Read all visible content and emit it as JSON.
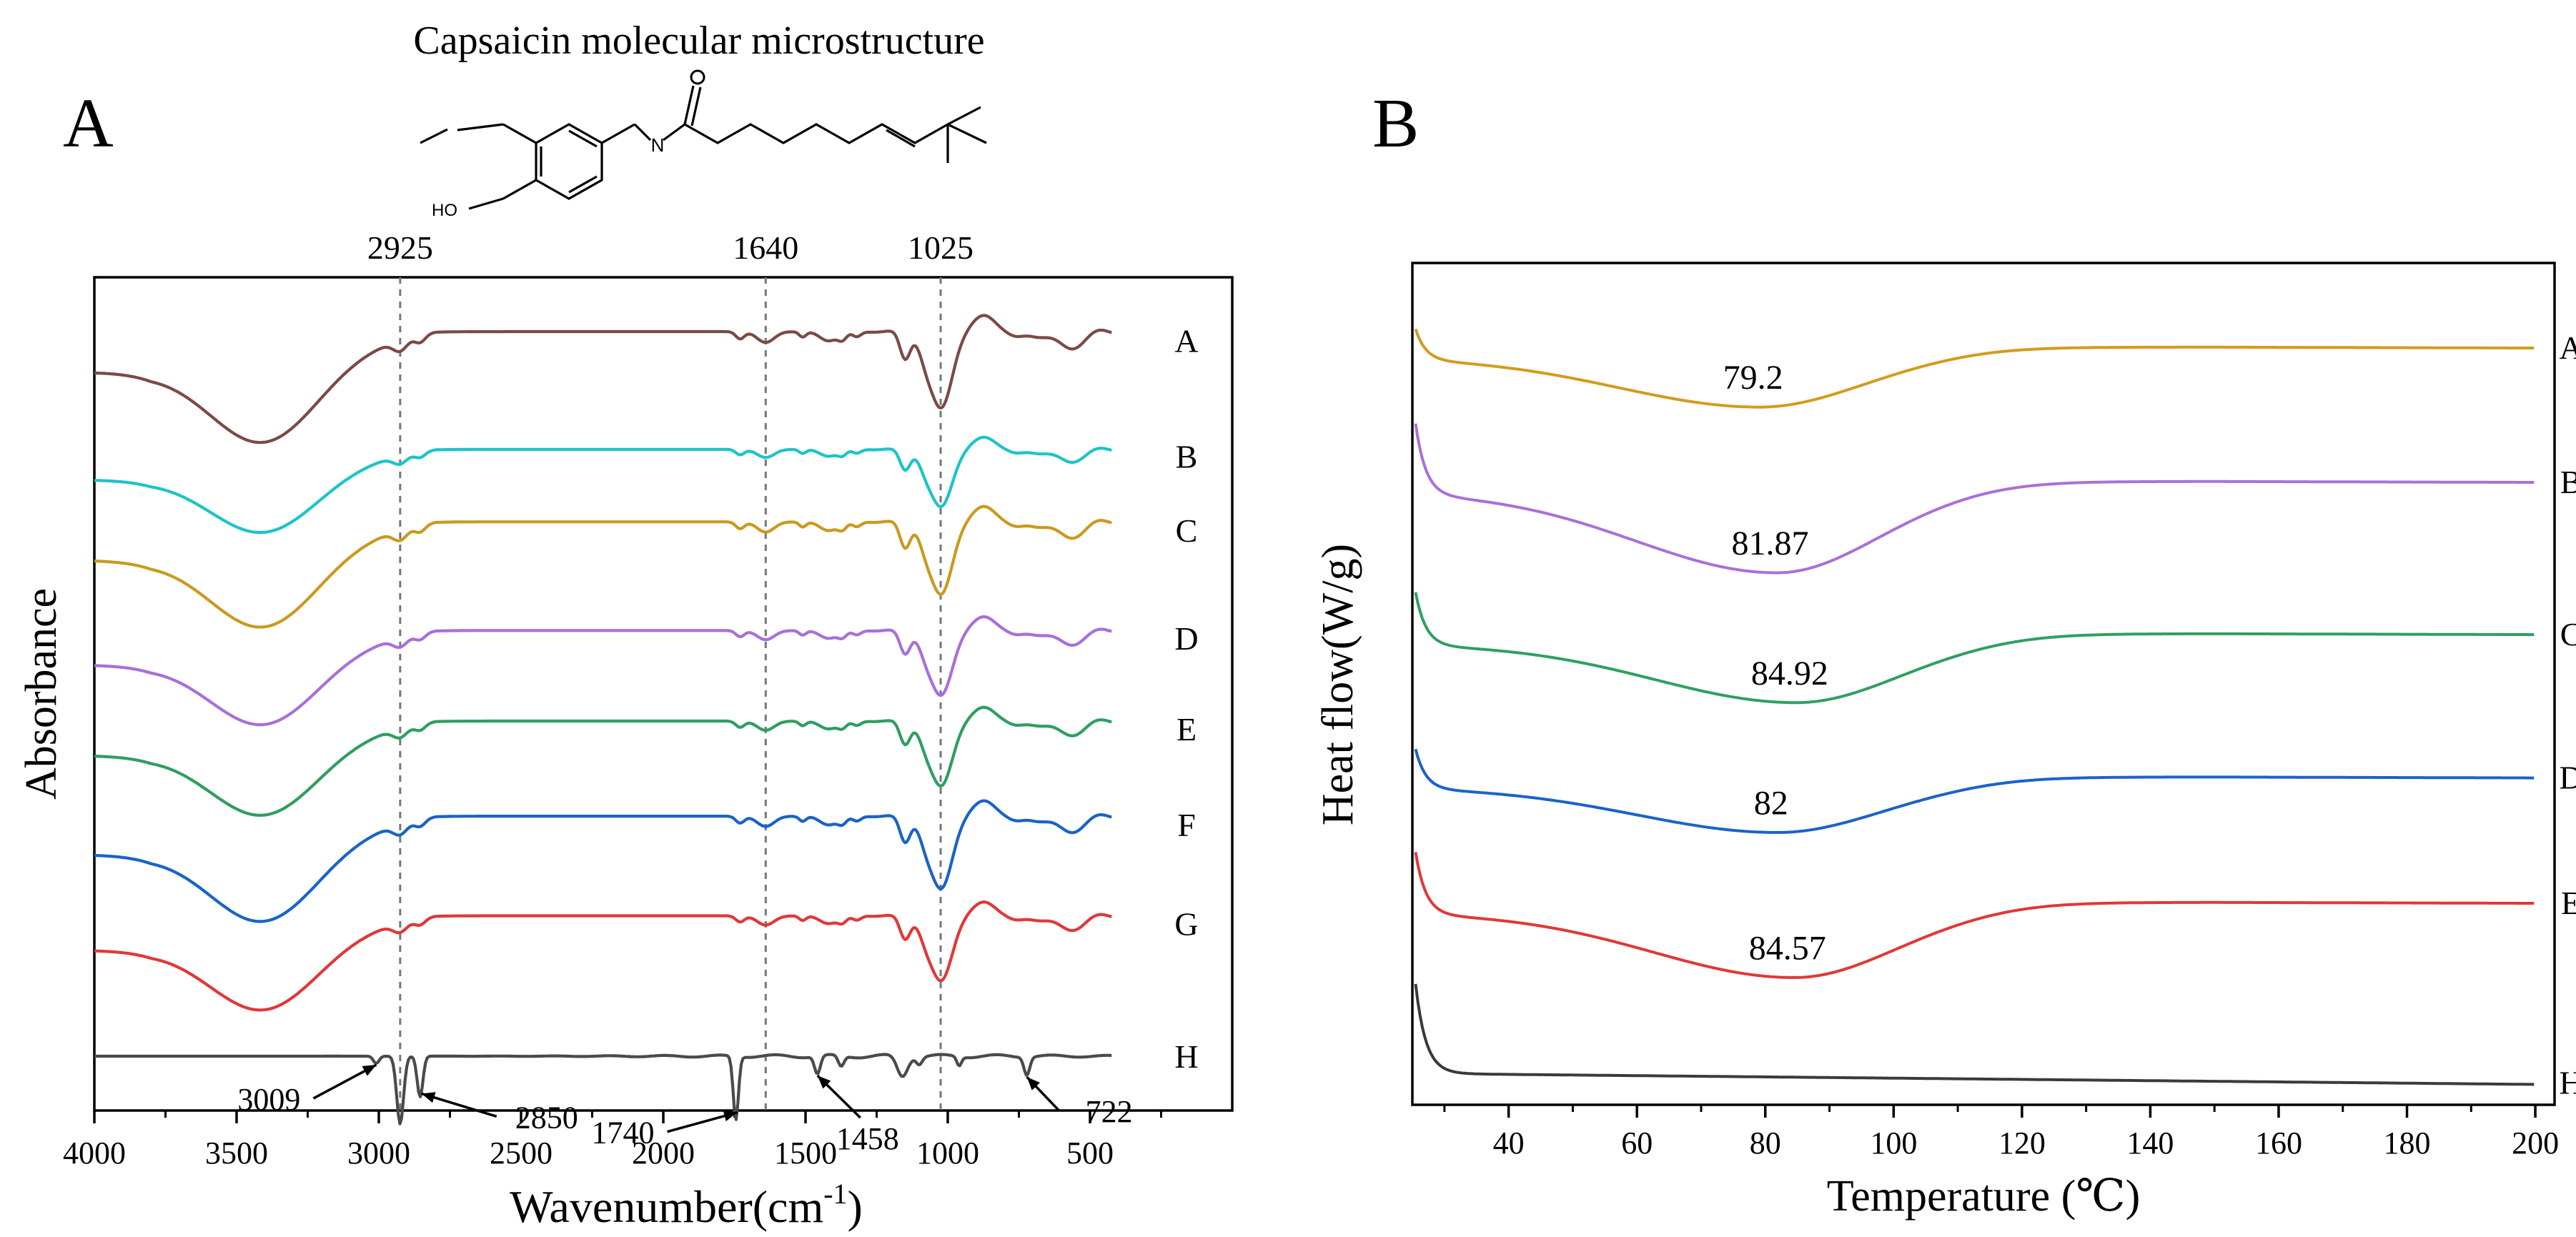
{
  "panels": {
    "a": {
      "letter": "A",
      "inset_title": "Capsaicin molecular microstructure",
      "mol_labels": {
        "n": "N",
        "ho": "HO"
      }
    },
    "b": {
      "letter": "B"
    }
  },
  "chart_data": [
    {
      "type": "line",
      "title": "",
      "xlabel_main": "Wavenumber(cm",
      "xlabel_sup": "-1",
      "xlabel_end": ")",
      "ylabel": "Absorbance",
      "xlim": [
        4000,
        0
      ],
      "x_ticks": [
        {
          "value": 4000,
          "label": "4000"
        },
        {
          "value": 3500,
          "label": "3500"
        },
        {
          "value": 3000,
          "label": "3000"
        },
        {
          "value": 2500,
          "label": "2500"
        },
        {
          "value": 2000,
          "label": "2000"
        },
        {
          "value": 1500,
          "label": "1500"
        },
        {
          "value": 1000,
          "label": "1000"
        },
        {
          "value": 500,
          "label": "500"
        }
      ],
      "reference_lines": [
        {
          "x": 2925,
          "label": "2925"
        },
        {
          "x": 1640,
          "label": "1640"
        },
        {
          "x": 1025,
          "label": "1025"
        }
      ],
      "series": [
        {
          "name": "A",
          "color": "#7b4a45",
          "offset": 7.6,
          "scale": 1.0
        },
        {
          "name": "B",
          "color": "#1cc4c8",
          "offset": 6.55,
          "scale": 0.75
        },
        {
          "name": "C",
          "color": "#c99a1e",
          "offset": 5.55,
          "scale": 0.95
        },
        {
          "name": "D",
          "color": "#a870d8",
          "offset": 4.45,
          "scale": 0.85
        },
        {
          "name": "E",
          "color": "#2f9e60",
          "offset": 3.45,
          "scale": 0.85
        },
        {
          "name": "F",
          "color": "#1a63c8",
          "offset": 2.3,
          "scale": 0.95
        },
        {
          "name": "G",
          "color": "#e03838",
          "offset": 1.3,
          "scale": 0.85
        },
        {
          "name": "H",
          "color": "#4a4a4a",
          "offset": 0.6,
          "scale": 1.0
        }
      ],
      "annotations": [
        {
          "label": "3009",
          "x": 3009
        },
        {
          "label": "2850",
          "x": 2850
        },
        {
          "label": "1740",
          "x": 1740
        },
        {
          "label": "1458",
          "x": 1458
        },
        {
          "label": "722",
          "x": 722
        }
      ]
    },
    {
      "type": "line",
      "title": "",
      "xlabel": "Temperature (℃)",
      "ylabel": "Heat flow(W/g)",
      "xlim": [
        25,
        203
      ],
      "x_ticks": [
        40,
        60,
        80,
        100,
        120,
        140,
        160,
        180,
        200
      ],
      "series": [
        {
          "name": "A",
          "color": "#d19c1d",
          "peak": 79.2,
          "peak_label": "79.2",
          "baseline": 8.4,
          "dip": 0.55,
          "spike": 0.35
        },
        {
          "name": "B",
          "color": "#a870d8",
          "peak": 81.87,
          "peak_label": "81.87",
          "baseline": 6.9,
          "dip": 0.9,
          "spike": 0.8
        },
        {
          "name": "C",
          "color": "#2fa060",
          "peak": 84.92,
          "peak_label": "84.92",
          "baseline": 5.2,
          "dip": 0.65,
          "spike": 0.6
        },
        {
          "name": "D",
          "color": "#1a63c8",
          "peak": 82,
          "peak_label": "82",
          "baseline": 3.6,
          "dip": 0.5,
          "spike": 0.45
        },
        {
          "name": "E",
          "color": "#e03838",
          "peak": 84.57,
          "peak_label": "84.57",
          "baseline": 2.2,
          "dip": 0.72,
          "spike": 0.7
        },
        {
          "name": "H",
          "color": "#3a3a3a",
          "peak": null,
          "peak_label": "",
          "baseline": 0.35,
          "dip": 0,
          "spike": 1.0
        }
      ]
    }
  ]
}
